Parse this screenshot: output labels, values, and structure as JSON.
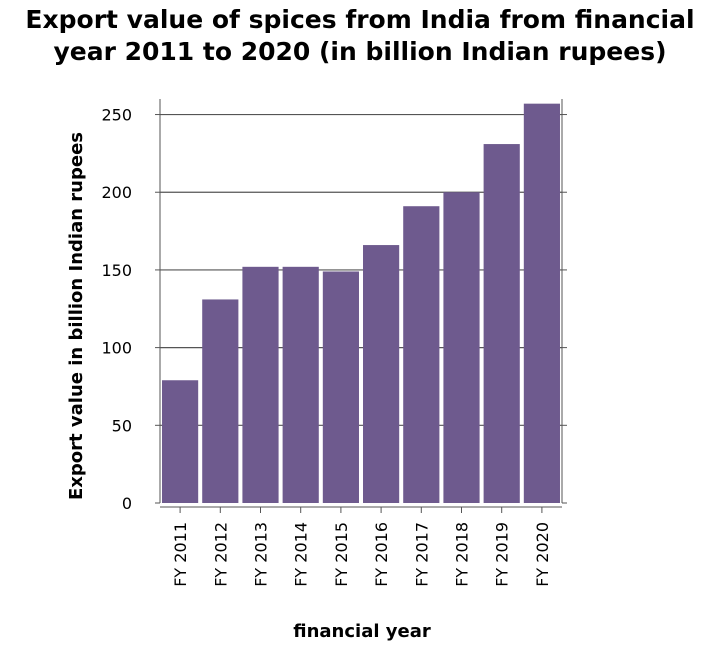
{
  "chart_data": {
    "type": "bar",
    "title_line1": "Export value of spices from India from financial",
    "title_line2": "year 2011 to 2020 (in billion Indian rupees)",
    "xlabel": "financial year",
    "ylabel": "Export value in billion Indian rupees",
    "categories": [
      "FY 2011",
      "FY 2012",
      "FY 2013",
      "FY 2014",
      "FY 2015",
      "FY 2016",
      "FY 2017",
      "FY 2018",
      "FY 2019",
      "FY 2020"
    ],
    "values": [
      79,
      131,
      152,
      152,
      149,
      166,
      191,
      200,
      231,
      257
    ],
    "ylim": [
      0,
      260
    ],
    "yticks": [
      0,
      50,
      100,
      150,
      200,
      250
    ],
    "grid": true,
    "bar_color": "#6e5a8e"
  }
}
